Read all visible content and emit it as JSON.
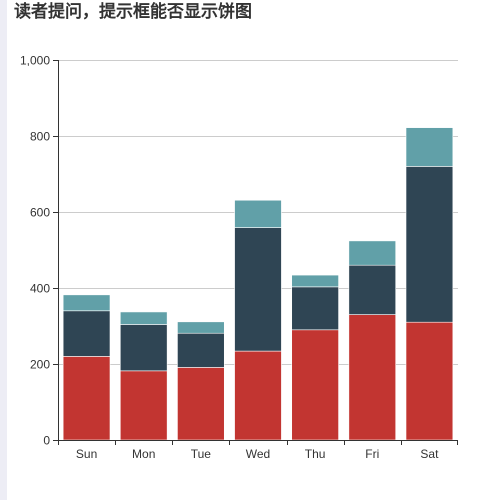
{
  "title": "读者提问，提示框能否显示饼图",
  "colors": {
    "series": [
      "#c23531",
      "#2f4554",
      "#61a0a8"
    ],
    "grid_line": "#cccccc",
    "axis_line": "#333333",
    "text": "#333333",
    "bar_border": "#ffffff"
  },
  "chart_data": {
    "type": "bar",
    "stacked": true,
    "categories": [
      "Sun",
      "Mon",
      "Tue",
      "Wed",
      "Thu",
      "Fri",
      "Sat"
    ],
    "series": [
      {
        "values": [
          220,
          182,
          191,
          234,
          290,
          330,
          310
        ]
      },
      {
        "values": [
          120,
          122,
          90,
          325,
          113,
          130,
          410
        ]
      },
      {
        "values": [
          42,
          33,
          30,
          72,
          31,
          64,
          102
        ]
      }
    ],
    "ylim": [
      0,
      1000
    ],
    "yticks": [
      0,
      200,
      400,
      600,
      800,
      1000
    ],
    "ytick_labels": [
      "0",
      "200",
      "400",
      "600",
      "800",
      "1,000"
    ],
    "grid": true,
    "legend": "none"
  }
}
